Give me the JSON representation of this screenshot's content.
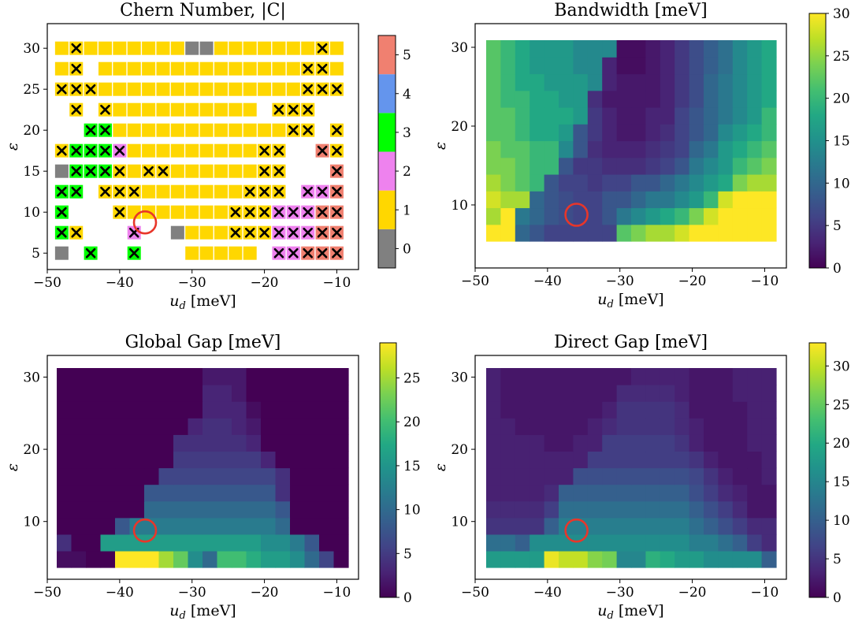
{
  "chart_data": [
    {
      "type": "heatmap",
      "title": "Chern Number, |C|",
      "xlabel": "u_d [meV]",
      "ylabel": "ε",
      "xlim": [
        -50,
        -7
      ],
      "ylim": [
        3,
        33
      ],
      "xticks": [
        -50,
        -40,
        -30,
        -20,
        -10
      ],
      "yticks": [
        5,
        10,
        15,
        20,
        25,
        30
      ],
      "x_values": [
        -48,
        -46,
        -44,
        -42,
        -40,
        -38,
        -36,
        -34,
        -32,
        -30,
        -28,
        -26,
        -24,
        -22,
        -20,
        -18,
        -16,
        -14,
        -12,
        -10
      ],
      "y_values": [
        5,
        7.5,
        10,
        12.5,
        15,
        17.5,
        20,
        22.5,
        25,
        27.5,
        30
      ],
      "colorbar": {
        "ticks": [
          0,
          1,
          2,
          3,
          4,
          5
        ],
        "colors": [
          "#808080",
          "#ffd700",
          "#ee82ee",
          "#00ff00",
          "#6495ed",
          "#f08070"
        ]
      },
      "grid": false,
      "rows": [
        "1X1111111GG1111111X1",
        "1X.11111111111111XX1",
        "XXX11111111111111XXX",
        ".X.X1111111111.XXX..",
        "..33111111111111XX.X",
        "X333P111111111XX..5X",
        "G333X1XX111111XX...5",
        "33.XXX1111111XXX.225",
        "3...X1111111XXX22255",
        "3X...2..G111XXX22255",
        "G.3..3...11111.22555"
      ],
      "legend_codes": {
        "G": "0 crossed",
        "1": "1",
        "X": "1 crossed",
        "P": "2 crossed",
        "2": "2 crossed",
        "3": "3 crossed",
        "5": "5 crossed",
        ".": "empty"
      },
      "marker": {
        "x": -36.5,
        "y": 8.75,
        "color": "#e8362a"
      }
    },
    {
      "type": "heatmap",
      "title": "Bandwidth [meV]",
      "xlabel": "u_d [meV]",
      "ylabel": "ε",
      "xlim": [
        -50,
        -7
      ],
      "ylim": [
        2,
        33
      ],
      "xticks": [
        -50,
        -40,
        -30,
        -20,
        -10
      ],
      "yticks": [
        10,
        20,
        30
      ],
      "colorbar": {
        "min": 0,
        "max": 30,
        "ticks": [
          0,
          5,
          10,
          15,
          20,
          25,
          30
        ]
      },
      "cmap": "viridis",
      "values": [
        [
          30,
          30,
          10,
          8,
          6,
          6,
          6,
          6,
          6,
          22,
          24,
          26,
          26,
          28,
          30,
          30,
          30,
          30,
          30,
          30
        ],
        [
          26,
          30,
          12,
          10,
          8,
          7,
          6,
          6,
          8,
          12,
          14,
          16,
          18,
          20,
          24,
          28,
          30,
          30,
          30,
          30
        ],
        [
          28,
          26,
          26,
          10,
          8,
          7,
          6,
          6,
          8,
          8,
          10,
          12,
          12,
          14,
          16,
          20,
          28,
          30,
          30,
          30
        ],
        [
          26,
          24,
          22,
          20,
          8,
          6,
          6,
          5,
          6,
          6,
          8,
          8,
          10,
          12,
          14,
          16,
          18,
          24,
          26,
          26
        ],
        [
          24,
          24,
          22,
          20,
          20,
          8,
          5,
          5,
          4,
          4,
          4,
          5,
          6,
          8,
          12,
          14,
          16,
          20,
          22,
          24
        ],
        [
          24,
          22,
          22,
          20,
          20,
          14,
          8,
          4,
          3,
          3,
          3,
          4,
          5,
          6,
          10,
          12,
          16,
          18,
          20,
          22
        ],
        [
          22,
          22,
          20,
          18,
          18,
          16,
          8,
          5,
          3,
          2,
          2,
          3,
          4,
          6,
          8,
          10,
          14,
          16,
          18,
          20
        ],
        [
          22,
          22,
          20,
          18,
          18,
          18,
          16,
          5,
          3,
          2,
          2,
          3,
          3,
          6,
          8,
          10,
          12,
          14,
          16,
          20
        ],
        [
          22,
          20,
          20,
          18,
          18,
          16,
          16,
          4,
          2,
          2,
          2,
          2,
          3,
          5,
          7,
          10,
          12,
          14,
          16,
          18
        ],
        [
          22,
          20,
          18,
          18,
          16,
          16,
          16,
          14,
          3,
          2,
          2,
          2,
          3,
          5,
          7,
          10,
          12,
          14,
          16,
          18
        ],
        [
          22,
          20,
          18,
          16,
          16,
          16,
          14,
          14,
          3,
          1,
          1,
          2,
          3,
          5,
          7,
          9,
          11,
          14,
          16,
          18
        ],
        [
          22,
          20,
          18,
          16,
          16,
          16,
          14,
          14,
          14,
          1,
          1,
          2,
          3,
          5,
          7,
          9,
          11,
          14,
          16,
          18
        ]
      ],
      "marker": {
        "x": -36,
        "y": 8.75,
        "color": "#e8362a"
      }
    },
    {
      "type": "heatmap",
      "title": "Global Gap [meV]",
      "xlabel": "u_d [meV]",
      "ylabel": "ε",
      "xlim": [
        -50,
        -7
      ],
      "ylim": [
        2,
        33
      ],
      "xticks": [
        -50,
        -40,
        -30,
        -20,
        -10
      ],
      "yticks": [
        10,
        20,
        30
      ],
      "colorbar": {
        "min": 0,
        "max": 29,
        "ticks": [
          0,
          5,
          10,
          15,
          20,
          25
        ]
      },
      "cmap": "viridis",
      "values": [
        [
          1,
          1,
          0,
          0,
          29,
          29,
          29,
          25,
          22,
          14,
          10,
          20,
          20,
          18,
          16,
          16,
          14,
          10,
          6,
          0
        ],
        [
          4,
          0,
          0,
          16,
          16,
          16,
          16,
          16,
          16,
          16,
          16,
          16,
          16,
          16,
          14,
          14,
          12,
          8,
          0,
          0
        ],
        [
          0,
          0,
          0,
          0,
          8,
          12,
          12,
          12,
          12,
          12,
          12,
          12,
          12,
          12,
          12,
          10,
          0,
          0,
          0,
          0
        ],
        [
          0,
          0,
          0,
          0,
          0,
          0,
          10,
          10,
          10,
          10,
          10,
          10,
          10,
          10,
          10,
          8,
          0,
          0,
          0,
          0
        ],
        [
          0,
          0,
          0,
          0,
          0,
          0,
          8,
          8,
          8,
          8,
          8,
          8,
          8,
          8,
          8,
          4,
          0,
          0,
          0,
          0
        ],
        [
          0,
          0,
          0,
          0,
          0,
          0,
          0,
          6,
          6,
          6,
          6,
          6,
          6,
          6,
          6,
          4,
          0,
          0,
          0,
          0
        ],
        [
          0,
          0,
          0,
          0,
          0,
          0,
          0,
          0,
          5,
          5,
          5,
          5,
          5,
          5,
          3,
          0,
          0,
          0,
          0,
          0
        ],
        [
          0,
          0,
          0,
          0,
          0,
          0,
          0,
          0,
          4,
          4,
          4,
          4,
          4,
          3,
          0,
          0,
          0,
          0,
          0,
          0
        ],
        [
          0,
          0,
          0,
          0,
          0,
          0,
          0,
          0,
          0,
          3,
          4,
          4,
          3,
          2,
          0,
          0,
          0,
          0,
          0,
          0
        ],
        [
          0,
          0,
          0,
          0,
          0,
          0,
          0,
          0,
          0,
          0,
          3,
          3,
          3,
          1,
          0,
          0,
          0,
          0,
          0,
          0
        ],
        [
          0,
          0,
          0,
          0,
          0,
          0,
          0,
          0,
          0,
          0,
          3,
          3,
          2,
          0,
          0,
          0,
          0,
          0,
          0,
          0
        ],
        [
          0,
          0,
          0,
          0,
          0,
          0,
          0,
          0,
          0,
          0,
          2,
          2,
          2,
          0,
          0,
          0,
          0,
          0,
          0,
          0
        ]
      ],
      "marker": {
        "x": -36.5,
        "y": 8.75,
        "color": "#e8362a"
      }
    },
    {
      "type": "heatmap",
      "title": "Direct Gap [meV]",
      "xlabel": "u_d [meV]",
      "ylabel": "ε",
      "xlim": [
        -50,
        -7
      ],
      "ylim": [
        2,
        33
      ],
      "xticks": [
        -50,
        -40,
        -30,
        -20,
        -10
      ],
      "yticks": [
        10,
        20,
        30
      ],
      "colorbar": {
        "min": 0,
        "max": 33,
        "ticks": [
          0,
          5,
          10,
          15,
          20,
          25,
          30
        ]
      },
      "cmap": "viridis",
      "values": [
        [
          18,
          18,
          18,
          18,
          32,
          30,
          30,
          27,
          26,
          15,
          15,
          21,
          20,
          18,
          18,
          16,
          16,
          16,
          16,
          10
        ],
        [
          12,
          12,
          10,
          16,
          16,
          16,
          16,
          16,
          16,
          16,
          16,
          16,
          16,
          16,
          14,
          14,
          12,
          10,
          6,
          4
        ],
        [
          5,
          5,
          5,
          5,
          10,
          14,
          14,
          14,
          14,
          14,
          14,
          14,
          14,
          14,
          12,
          10,
          8,
          6,
          4,
          4
        ],
        [
          4,
          4,
          4,
          4,
          6,
          12,
          12,
          12,
          12,
          12,
          12,
          12,
          12,
          12,
          10,
          8,
          6,
          4,
          2,
          2
        ],
        [
          3,
          3,
          3,
          3,
          4,
          10,
          10,
          10,
          10,
          10,
          10,
          10,
          10,
          10,
          8,
          6,
          4,
          3,
          2,
          2
        ],
        [
          3,
          3,
          3,
          3,
          3,
          3,
          8,
          8,
          8,
          8,
          8,
          8,
          8,
          8,
          7,
          5,
          3,
          2,
          2,
          3
        ],
        [
          3,
          3,
          3,
          3,
          3,
          3,
          3,
          6,
          6,
          6,
          6,
          6,
          6,
          6,
          5,
          3,
          2,
          2,
          2,
          3
        ],
        [
          3,
          3,
          3,
          3,
          2,
          2,
          3,
          3,
          6,
          6,
          6,
          6,
          6,
          5,
          3,
          2,
          2,
          2,
          3,
          3
        ],
        [
          3,
          3,
          2,
          2,
          2,
          2,
          2,
          3,
          4,
          5,
          5,
          5,
          5,
          4,
          3,
          2,
          2,
          2,
          3,
          3
        ],
        [
          3,
          2,
          2,
          2,
          2,
          2,
          2,
          2,
          3,
          5,
          5,
          5,
          5,
          4,
          2,
          2,
          2,
          2,
          3,
          3
        ],
        [
          3,
          2,
          2,
          2,
          2,
          2,
          2,
          2,
          2,
          4,
          4,
          4,
          4,
          3,
          2,
          2,
          2,
          3,
          3,
          3
        ],
        [
          3,
          2,
          2,
          2,
          2,
          2,
          2,
          2,
          2,
          2,
          3,
          3,
          3,
          3,
          2,
          2,
          2,
          3,
          3,
          3
        ]
      ],
      "marker": {
        "x": -36,
        "y": 8.75,
        "color": "#e8362a"
      }
    }
  ]
}
